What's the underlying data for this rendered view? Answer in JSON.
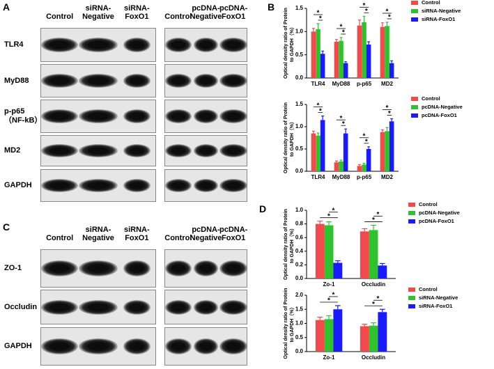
{
  "figure": {
    "panel_labels": [
      "A",
      "B",
      "C",
      "D"
    ],
    "blots": [
      {
        "lanes_left": [
          "Control",
          "siRNA-\nNegative",
          "siRNA-\nFoxO1"
        ],
        "lanes_right": [
          "Control",
          "pcDNA-\nNegative",
          "pcDNA-\nFoxO1"
        ],
        "rows": [
          "TLR4",
          "MyD88",
          "p-p65\n（NF-kB）",
          "MD2",
          "GAPDH"
        ]
      },
      {
        "lanes_left": [
          "Control",
          "siRNA-\nNegative",
          "siRNA-\nFoxO1"
        ],
        "lanes_right": [
          "Control",
          "pcDNA-\nNegative",
          "pcDNA-\nFoxO1"
        ],
        "rows": [
          "ZO-1",
          "Occludin",
          "GAPDH"
        ]
      }
    ]
  },
  "chart_data": [
    {
      "type": "bar",
      "categories": [
        "TLR4",
        "MyD88",
        "p-p65",
        "MD2"
      ],
      "series": [
        {
          "name": "Control",
          "color": "#f24a4a",
          "values": [
            1.0,
            0.78,
            1.13,
            1.1
          ],
          "errors": [
            0.07,
            0.05,
            0.12,
            0.09
          ]
        },
        {
          "name": "siRNA-Negative",
          "color": "#2ec32e",
          "values": [
            1.05,
            0.8,
            1.2,
            1.12
          ],
          "errors": [
            0.12,
            0.07,
            0.13,
            0.08
          ]
        },
        {
          "name": "siRNA-FoxO1",
          "color": "#1a1aff",
          "values": [
            0.52,
            0.32,
            0.72,
            0.32
          ],
          "errors": [
            0.06,
            0.03,
            0.06,
            0.05
          ]
        }
      ],
      "ylim": [
        0,
        1.5
      ],
      "yticks": [
        {
          "value": 0,
          "label": "0.0"
        },
        0.5,
        {
          "value": 1,
          "label": "1.0"
        },
        1.5
      ],
      "ylabel": [
        "Optical density ratio of Protein",
        "to GAPDH（%）"
      ],
      "legend": "top-right",
      "significance": [
        {
          "label": "*",
          "category": "TLR4",
          "groups": [
            "siRNA-Negative",
            "siRNA-FoxO1"
          ]
        },
        {
          "label": "*",
          "category": "TLR4",
          "groups": [
            "Control",
            "siRNA-FoxO1"
          ]
        },
        {
          "label": "*",
          "category": "MyD88",
          "groups": [
            "siRNA-Negative",
            "siRNA-FoxO1"
          ]
        },
        {
          "label": "*",
          "category": "MyD88",
          "groups": [
            "Control",
            "siRNA-FoxO1"
          ]
        },
        {
          "label": "*",
          "category": "p-p65",
          "groups": [
            "siRNA-Negative",
            "siRNA-FoxO1"
          ]
        },
        {
          "label": "*",
          "category": "p-p65",
          "groups": [
            "Control",
            "siRNA-FoxO1"
          ]
        },
        {
          "label": "*",
          "category": "MD2",
          "groups": [
            "siRNA-Negative",
            "siRNA-FoxO1"
          ]
        },
        {
          "label": "*",
          "category": "MD2",
          "groups": [
            "Control",
            "siRNA-FoxO1"
          ]
        }
      ]
    },
    {
      "type": "bar",
      "categories": [
        "TLR4",
        "MyD88",
        "p-p65",
        "MD2"
      ],
      "series": [
        {
          "name": "Control",
          "color": "#f24a4a",
          "values": [
            0.85,
            0.2,
            0.12,
            0.88
          ],
          "errors": [
            0.05,
            0.03,
            0.03,
            0.05
          ]
        },
        {
          "name": "pcDNA-Negative",
          "color": "#2ec32e",
          "values": [
            0.8,
            0.22,
            0.15,
            0.9
          ],
          "errors": [
            0.06,
            0.03,
            0.03,
            0.08
          ]
        },
        {
          "name": "pcDNA-FoxO1",
          "color": "#1a1aff",
          "values": [
            1.15,
            0.85,
            0.5,
            1.12
          ],
          "errors": [
            0.09,
            0.1,
            0.05,
            0.06
          ]
        }
      ],
      "ylim": [
        0,
        1.5
      ],
      "yticks": [
        {
          "value": 0,
          "label": "0.0"
        },
        0.5,
        {
          "value": 1,
          "label": "1.0"
        },
        1.5
      ],
      "ylabel": [
        "Optical density ratio of Protein",
        "to GAPDH（%）"
      ],
      "legend": "top-right",
      "significance": [
        {
          "label": "*",
          "category": "TLR4",
          "groups": [
            "pcDNA-Negative",
            "pcDNA-FoxO1"
          ]
        },
        {
          "label": "*",
          "category": "TLR4",
          "groups": [
            "Control",
            "pcDNA-FoxO1"
          ]
        },
        {
          "label": "*",
          "category": "MyD88",
          "groups": [
            "pcDNA-Negative",
            "pcDNA-FoxO1"
          ]
        },
        {
          "label": "*",
          "category": "MyD88",
          "groups": [
            "Control",
            "pcDNA-FoxO1"
          ]
        },
        {
          "label": "*",
          "category": "p-p65",
          "groups": [
            "pcDNA-Negative",
            "pcDNA-FoxO1"
          ]
        },
        {
          "label": "*",
          "category": "p-p65",
          "groups": [
            "Control",
            "pcDNA-FoxO1"
          ]
        },
        {
          "label": "*",
          "category": "MD2",
          "groups": [
            "pcDNA-Negative",
            "pcDNA-FoxO1"
          ]
        },
        {
          "label": "*",
          "category": "MD2",
          "groups": [
            "Control",
            "pcDNA-FoxO1"
          ]
        }
      ]
    },
    {
      "type": "bar",
      "categories": [
        "Zo-1",
        "Occludin"
      ],
      "series": [
        {
          "name": "Control",
          "color": "#f24a4a",
          "values": [
            0.8,
            0.69
          ],
          "errors": [
            0.04,
            0.04
          ]
        },
        {
          "name": "pcDNA-Negative",
          "color": "#2ec32e",
          "values": [
            0.78,
            0.71
          ],
          "errors": [
            0.05,
            0.07
          ]
        },
        {
          "name": "pcDNA-FoxO1",
          "color": "#1a1aff",
          "values": [
            0.23,
            0.19
          ],
          "errors": [
            0.03,
            0.03
          ]
        }
      ],
      "ylim": [
        0,
        1.0
      ],
      "yticks": [
        {
          "value": 0,
          "label": "0.0"
        },
        0.2,
        0.4,
        0.6,
        0.8,
        {
          "value": 1,
          "label": "1.0"
        }
      ],
      "ylabel": [
        "Optical density ratio of Protein",
        "to GAPDH（%）"
      ],
      "legend": "top-right",
      "significance": [
        {
          "label": "*",
          "category": "Zo-1",
          "groups": [
            "Control",
            "pcDNA-FoxO1"
          ]
        },
        {
          "label": "*",
          "category": "Zo-1",
          "groups": [
            "pcDNA-Negative",
            "pcDNA-FoxO1"
          ]
        },
        {
          "label": "*",
          "category": "Occludin",
          "groups": [
            "Control",
            "pcDNA-FoxO1"
          ]
        },
        {
          "label": "*",
          "category": "Occludin",
          "groups": [
            "pcDNA-Negative",
            "pcDNA-FoxO1"
          ]
        }
      ]
    },
    {
      "type": "bar",
      "categories": [
        "Zo-1",
        "Occludin"
      ],
      "series": [
        {
          "name": "Control",
          "color": "#f24a4a",
          "values": [
            1.12,
            0.9
          ],
          "errors": [
            0.1,
            0.07
          ]
        },
        {
          "name": "siRNA-Negative",
          "color": "#2ec32e",
          "values": [
            1.15,
            0.92
          ],
          "errors": [
            0.12,
            0.1
          ]
        },
        {
          "name": "siRNA-FoxO1",
          "color": "#1a1aff",
          "values": [
            1.5,
            1.4
          ],
          "errors": [
            0.13,
            0.1
          ]
        }
      ],
      "ylim": [
        0,
        2.0
      ],
      "yticks": [
        {
          "value": 0,
          "label": "0.0"
        },
        0.5,
        {
          "value": 1,
          "label": "1.0"
        },
        1.5,
        {
          "value": 2,
          "label": "2.0"
        }
      ],
      "ylabel": [
        "Optical density ratio of Protein",
        "to GAPDH（%）"
      ],
      "legend": "top-right",
      "significance": [
        {
          "label": "*",
          "category": "Zo-1",
          "groups": [
            "Control",
            "siRNA-FoxO1"
          ]
        },
        {
          "label": "*",
          "category": "Zo-1",
          "groups": [
            "siRNA-Negative",
            "siRNA-FoxO1"
          ]
        },
        {
          "label": "*",
          "category": "Occludin",
          "groups": [
            "Control",
            "siRNA-FoxO1"
          ]
        },
        {
          "label": "*",
          "category": "Occludin",
          "groups": [
            "siRNA-Negative",
            "siRNA-FoxO1"
          ]
        }
      ]
    }
  ]
}
